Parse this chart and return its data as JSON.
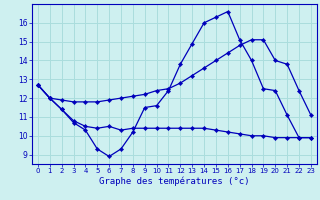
{
  "title": "Graphe des températures (°c)",
  "bg_color": "#cef0f0",
  "line_color": "#0000bb",
  "grid_color": "#aadddd",
  "xlim": [
    -0.5,
    23.5
  ],
  "ylim": [
    8.5,
    17.0
  ],
  "yticks": [
    9,
    10,
    11,
    12,
    13,
    14,
    15,
    16
  ],
  "xticks": [
    0,
    1,
    2,
    3,
    4,
    5,
    6,
    7,
    8,
    9,
    10,
    11,
    12,
    13,
    14,
    15,
    16,
    17,
    18,
    19,
    20,
    21,
    22,
    23
  ],
  "curve1_x": [
    0,
    1,
    2,
    3,
    4,
    5,
    6,
    7,
    8,
    9,
    10,
    11,
    12,
    13,
    14,
    15,
    16,
    17,
    18,
    19,
    20,
    21,
    22,
    23
  ],
  "curve1_y": [
    12.7,
    12.0,
    11.4,
    10.7,
    10.3,
    9.3,
    8.9,
    9.3,
    10.2,
    11.5,
    11.6,
    12.4,
    13.8,
    14.9,
    16.0,
    16.3,
    16.6,
    15.1,
    14.0,
    12.5,
    12.4,
    11.1,
    9.9,
    9.9
  ],
  "curve2_x": [
    0,
    1,
    2,
    3,
    4,
    5,
    6,
    7,
    8,
    9,
    10,
    11,
    12,
    13,
    14,
    15,
    16,
    17,
    18,
    19,
    20,
    21,
    22,
    23
  ],
  "curve2_y": [
    12.7,
    12.0,
    11.4,
    10.8,
    10.5,
    10.4,
    10.5,
    10.3,
    10.4,
    10.4,
    10.4,
    10.4,
    10.4,
    10.4,
    10.4,
    10.3,
    10.2,
    10.1,
    10.0,
    10.0,
    9.9,
    9.9,
    9.9,
    9.9
  ],
  "curve3_x": [
    0,
    1,
    2,
    3,
    4,
    5,
    6,
    7,
    8,
    9,
    10,
    11,
    12,
    13,
    14,
    15,
    16,
    17,
    18,
    19,
    20,
    21,
    22,
    23
  ],
  "curve3_y": [
    12.7,
    12.0,
    11.9,
    11.8,
    11.8,
    11.8,
    11.9,
    12.0,
    12.1,
    12.2,
    12.4,
    12.5,
    12.8,
    13.2,
    13.6,
    14.0,
    14.4,
    14.8,
    15.1,
    15.1,
    14.0,
    13.8,
    12.4,
    11.1
  ]
}
